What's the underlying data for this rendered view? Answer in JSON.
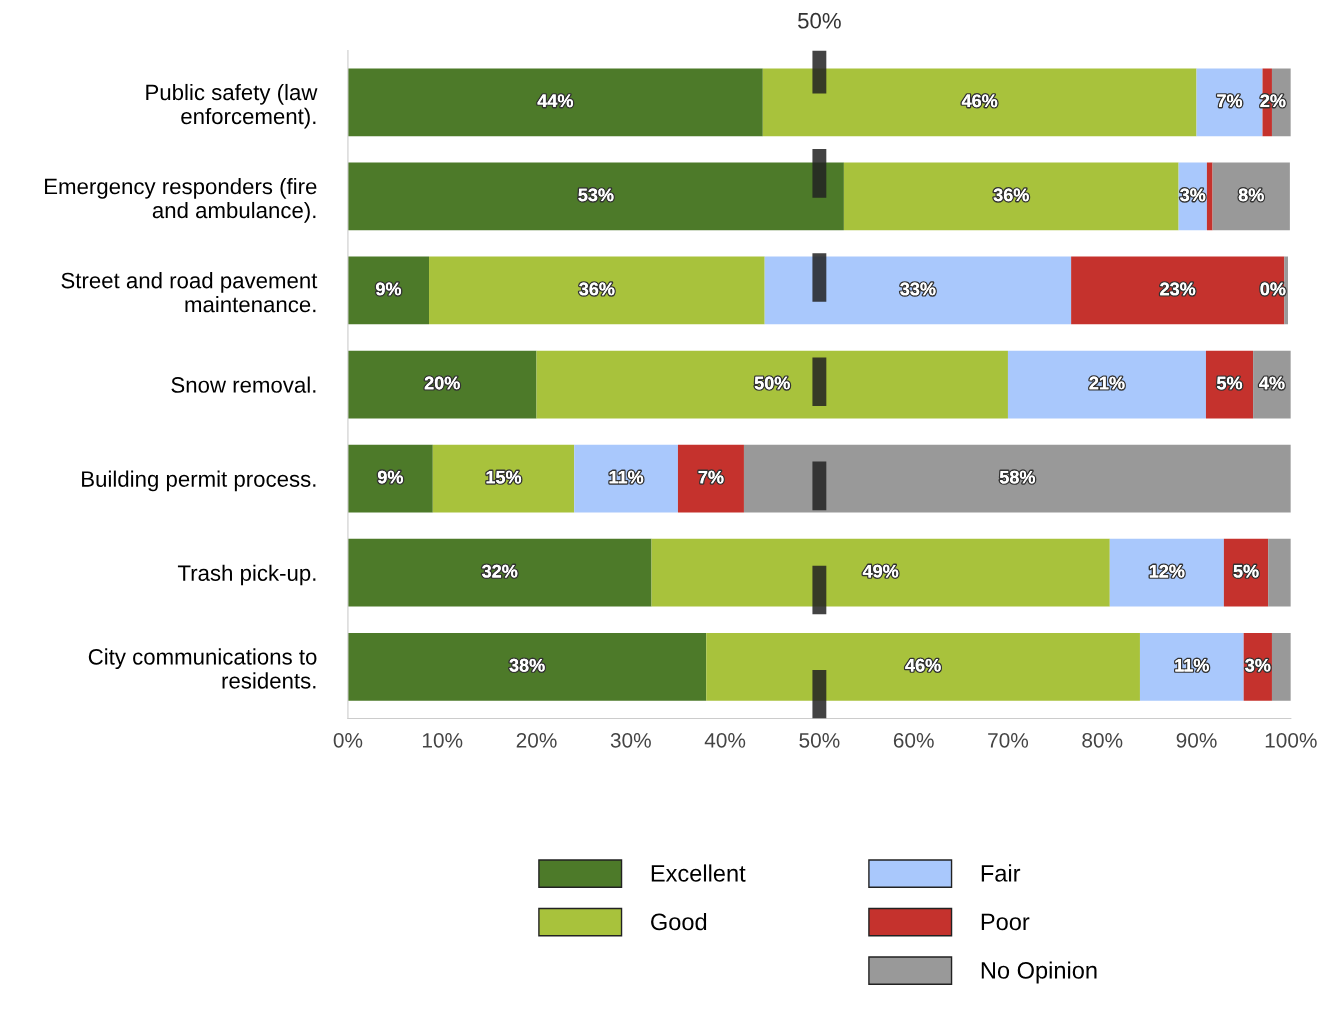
{
  "chart_data": {
    "type": "bar",
    "orientation": "horizontal",
    "stacked": true,
    "categories": [
      "Public safety (law\nenforcement).",
      "Emergency responders (fire\nand ambulance).",
      "Street and road pavement\nmaintenance.",
      "Snow removal.",
      "Building permit process.",
      "Trash pick-up.",
      "City communications to\nresidents."
    ],
    "series": [
      {
        "name": "Excellent",
        "color": "#4d7a29",
        "values": [
          44,
          52.6,
          8.6,
          20,
          9,
          32.2,
          38
        ],
        "value_labels": [
          "44%",
          "53%",
          "9%",
          "20%",
          "9%",
          "32%",
          "38%"
        ]
      },
      {
        "name": "Good",
        "color": "#a8c23c",
        "values": [
          46,
          35.5,
          35.6,
          50,
          15,
          48.6,
          46
        ],
        "value_labels": [
          "46%",
          "36%",
          "36%",
          "50%",
          "15%",
          "49%",
          "46%"
        ]
      },
      {
        "name": "Fair",
        "color": "#a9c8fc",
        "values": [
          7,
          3,
          32.5,
          21,
          11,
          12.1,
          11
        ],
        "value_labels": [
          "7%",
          "3%",
          "33%",
          "21%",
          "11%",
          "12%",
          "11%"
        ]
      },
      {
        "name": "Poor",
        "color": "#c5322d",
        "values": [
          1,
          0.6,
          22.6,
          5,
          7,
          4.7,
          3
        ],
        "value_labels": [
          null,
          null,
          "23%",
          "5%",
          "7%",
          "5%",
          "3%"
        ]
      },
      {
        "name": "No Opinion",
        "color": "#999999",
        "values": [
          2,
          8.2,
          0.4,
          4,
          58,
          2.4,
          2
        ],
        "value_labels": [
          "2%",
          "8%",
          "0%",
          "4%",
          "58%",
          null,
          null
        ]
      }
    ],
    "xlim": [
      0,
      100
    ],
    "xticks": [
      {
        "value": 0,
        "label": "0%"
      },
      {
        "value": 10,
        "label": "10%"
      },
      {
        "value": 20,
        "label": "20%"
      },
      {
        "value": 30,
        "label": "30%"
      },
      {
        "value": 40,
        "label": "40%"
      },
      {
        "value": 50,
        "label": "50%"
      },
      {
        "value": 60,
        "label": "60%"
      },
      {
        "value": 70,
        "label": "70%"
      },
      {
        "value": 80,
        "label": "80%"
      },
      {
        "value": 90,
        "label": "90%"
      },
      {
        "value": 100,
        "label": "100%"
      }
    ],
    "ref_lines": [
      {
        "axis": "x",
        "value": 50,
        "label": "50%",
        "color": "#222222",
        "line_style": "dashed"
      }
    ],
    "grid": false,
    "legend": "bottom"
  }
}
